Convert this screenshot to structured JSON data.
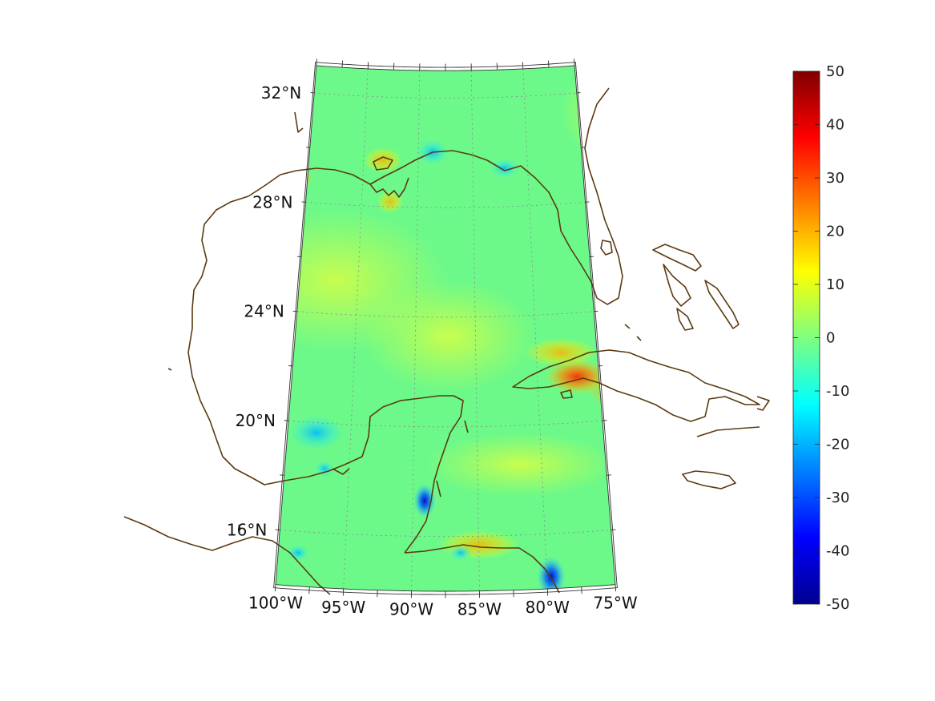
{
  "map": {
    "lat_labels": [
      {
        "lat": 32,
        "text": "32°N"
      },
      {
        "lat": 28,
        "text": "28°N"
      },
      {
        "lat": 24,
        "text": "24°N"
      },
      {
        "lat": 20,
        "text": "20°N"
      },
      {
        "lat": 16,
        "text": "16°N"
      }
    ],
    "lon_labels": [
      {
        "lon": -100,
        "text": "100°W"
      },
      {
        "lon": -95,
        "text": "95°W"
      },
      {
        "lon": -90,
        "text": "90°W"
      },
      {
        "lon": -85,
        "text": "85°W"
      },
      {
        "lon": -80,
        "text": "80°W"
      },
      {
        "lon": -75,
        "text": "75°W"
      }
    ],
    "extent": {
      "lon_min": -100,
      "lon_max": -75,
      "lat_min": 14,
      "lat_max": 33
    },
    "colors": {
      "coastline": "#5c3a12",
      "graticule": "#8a8a8a",
      "background_field": "#6cf98a"
    }
  },
  "colorbar": {
    "min": -50,
    "max": 50,
    "colormap": "jet",
    "tick_labels": [
      "50",
      "40",
      "30",
      "20",
      "10",
      "0",
      "-10",
      "-20",
      "-30",
      "-40",
      "-50"
    ]
  }
}
